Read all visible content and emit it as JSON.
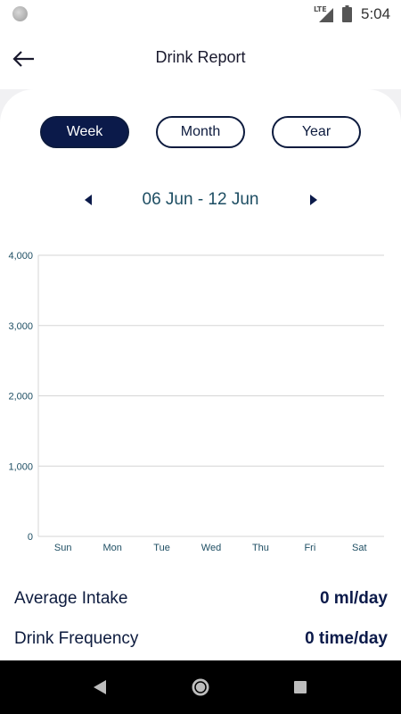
{
  "status_bar": {
    "network": "LTE",
    "time": "5:04"
  },
  "app_bar": {
    "title": "Drink Report",
    "back_icon": "arrow-left-icon"
  },
  "period_tabs": {
    "week": "Week",
    "month": "Month",
    "year": "Year",
    "selected": "Week"
  },
  "date_nav": {
    "range": "06 Jun - 12 Jun",
    "prev_icon": "triangle-left-icon",
    "next_icon": "triangle-right-icon"
  },
  "chart_data": {
    "type": "bar",
    "categories": [
      "Sun",
      "Mon",
      "Tue",
      "Wed",
      "Thu",
      "Fri",
      "Sat"
    ],
    "values": [
      0,
      0,
      0,
      0,
      0,
      0,
      0
    ],
    "yticks": [
      "0",
      "1,000",
      "2,000",
      "3,000",
      "4,000"
    ],
    "ylim": [
      0,
      4000
    ],
    "grid": true,
    "title": "",
    "xlabel": "",
    "ylabel": ""
  },
  "summary": {
    "average_intake_label": "Average Intake",
    "average_intake_value": "0 ml/day",
    "drink_frequency_label": "Drink Frequency",
    "drink_frequency_value": "0 time/day"
  },
  "colors": {
    "primary": "#0b1a4a",
    "date_text": "#1e4e63",
    "axis_text": "#1e4e63",
    "grid": "#d6d6d6"
  }
}
